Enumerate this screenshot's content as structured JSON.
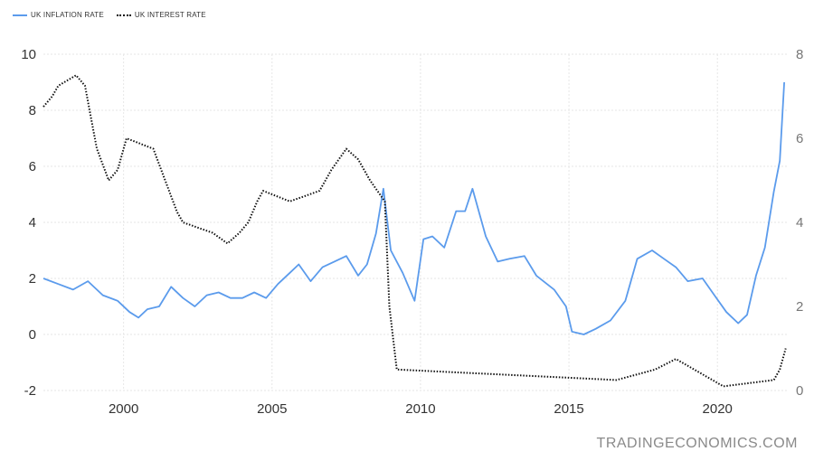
{
  "legend": {
    "series1": "UK INFLATION RATE",
    "series2": "UK INTEREST RATE"
  },
  "watermark": "TRADINGECONOMICS.COM",
  "colors": {
    "inflation": "#5b9bec",
    "interest": "#111111",
    "grid": "#e6e6e6"
  },
  "chart_data": {
    "type": "line",
    "x_ticks": [
      2000,
      2005,
      2010,
      2015,
      2020
    ],
    "x_range": [
      1997.3,
      2022.4
    ],
    "left_axis": {
      "range": [
        -2,
        10
      ],
      "ticks": [
        -2,
        0,
        2,
        4,
        6,
        8,
        10
      ]
    },
    "right_axis": {
      "range": [
        0,
        8
      ],
      "ticks": [
        0,
        2,
        4,
        6,
        8
      ]
    },
    "grid": true,
    "legend_position": "top-left",
    "series": [
      {
        "name": "UK INFLATION RATE",
        "axis": "left",
        "style": "solid",
        "points": [
          [
            1997.3,
            2.0
          ],
          [
            1997.8,
            1.8
          ],
          [
            1998.3,
            1.6
          ],
          [
            1998.8,
            1.9
          ],
          [
            1999.3,
            1.4
          ],
          [
            1999.8,
            1.2
          ],
          [
            2000.2,
            0.8
          ],
          [
            2000.5,
            0.6
          ],
          [
            2000.8,
            0.9
          ],
          [
            2001.2,
            1.0
          ],
          [
            2001.6,
            1.7
          ],
          [
            2002.0,
            1.3
          ],
          [
            2002.4,
            1.0
          ],
          [
            2002.8,
            1.4
          ],
          [
            2003.2,
            1.5
          ],
          [
            2003.6,
            1.3
          ],
          [
            2004.0,
            1.3
          ],
          [
            2004.4,
            1.5
          ],
          [
            2004.8,
            1.3
          ],
          [
            2005.2,
            1.8
          ],
          [
            2005.6,
            2.2
          ],
          [
            2005.9,
            2.5
          ],
          [
            2006.3,
            1.9
          ],
          [
            2006.7,
            2.4
          ],
          [
            2007.1,
            2.6
          ],
          [
            2007.5,
            2.8
          ],
          [
            2007.9,
            2.1
          ],
          [
            2008.2,
            2.5
          ],
          [
            2008.5,
            3.6
          ],
          [
            2008.75,
            5.2
          ],
          [
            2009.0,
            3.0
          ],
          [
            2009.4,
            2.2
          ],
          [
            2009.8,
            1.2
          ],
          [
            2010.1,
            3.4
          ],
          [
            2010.4,
            3.5
          ],
          [
            2010.8,
            3.1
          ],
          [
            2011.2,
            4.4
          ],
          [
            2011.5,
            4.4
          ],
          [
            2011.75,
            5.2
          ],
          [
            2012.2,
            3.5
          ],
          [
            2012.6,
            2.6
          ],
          [
            2013.0,
            2.7
          ],
          [
            2013.5,
            2.8
          ],
          [
            2013.9,
            2.1
          ],
          [
            2014.5,
            1.6
          ],
          [
            2014.9,
            1.0
          ],
          [
            2015.1,
            0.1
          ],
          [
            2015.5,
            0.0
          ],
          [
            2015.9,
            0.2
          ],
          [
            2016.4,
            0.5
          ],
          [
            2016.9,
            1.2
          ],
          [
            2017.3,
            2.7
          ],
          [
            2017.8,
            3.0
          ],
          [
            2018.2,
            2.7
          ],
          [
            2018.6,
            2.4
          ],
          [
            2019.0,
            1.9
          ],
          [
            2019.5,
            2.0
          ],
          [
            2019.9,
            1.4
          ],
          [
            2020.3,
            0.8
          ],
          [
            2020.7,
            0.4
          ],
          [
            2021.0,
            0.7
          ],
          [
            2021.3,
            2.1
          ],
          [
            2021.6,
            3.1
          ],
          [
            2021.9,
            5.1
          ],
          [
            2022.1,
            6.2
          ],
          [
            2022.25,
            9.0
          ]
        ]
      },
      {
        "name": "UK INTEREST RATE",
        "axis": "right",
        "style": "dotted",
        "points": [
          [
            1997.3,
            6.75
          ],
          [
            1997.6,
            7.0
          ],
          [
            1997.8,
            7.25
          ],
          [
            1998.4,
            7.5
          ],
          [
            1998.7,
            7.25
          ],
          [
            1998.9,
            6.5
          ],
          [
            1999.1,
            5.75
          ],
          [
            1999.5,
            5.0
          ],
          [
            1999.8,
            5.25
          ],
          [
            2000.1,
            6.0
          ],
          [
            2001.0,
            5.75
          ],
          [
            2001.4,
            5.0
          ],
          [
            2001.8,
            4.25
          ],
          [
            2002.0,
            4.0
          ],
          [
            2003.0,
            3.75
          ],
          [
            2003.5,
            3.5
          ],
          [
            2003.9,
            3.75
          ],
          [
            2004.2,
            4.0
          ],
          [
            2004.5,
            4.5
          ],
          [
            2004.7,
            4.75
          ],
          [
            2005.6,
            4.5
          ],
          [
            2006.6,
            4.75
          ],
          [
            2007.0,
            5.25
          ],
          [
            2007.5,
            5.75
          ],
          [
            2007.9,
            5.5
          ],
          [
            2008.3,
            5.0
          ],
          [
            2008.8,
            4.5
          ],
          [
            2008.95,
            2.0
          ],
          [
            2009.2,
            0.5
          ],
          [
            2016.6,
            0.25
          ],
          [
            2017.9,
            0.5
          ],
          [
            2018.6,
            0.75
          ],
          [
            2020.2,
            0.1
          ],
          [
            2021.9,
            0.25
          ],
          [
            2022.1,
            0.5
          ],
          [
            2022.3,
            1.0
          ]
        ]
      }
    ]
  }
}
